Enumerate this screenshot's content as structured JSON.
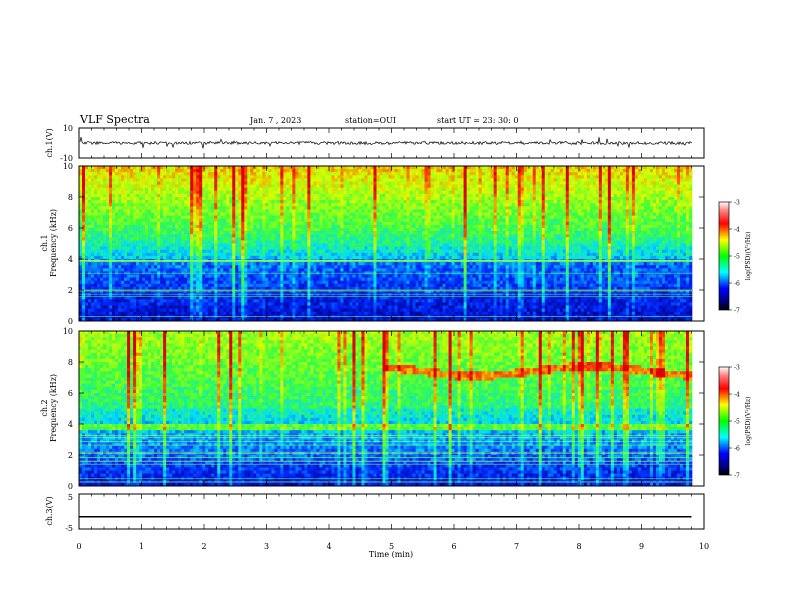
{
  "header": {
    "title": "VLF Spectra",
    "date": "Jan. 7 , 2023",
    "station": "station=OUI",
    "start": "start UT = 23: 30: 0"
  },
  "colors": {
    "black": "#000000",
    "background": "#ffffff"
  },
  "chart_data": [
    {
      "type": "line",
      "ylabel": "ch.1(V)",
      "ylim": [
        -10,
        10
      ],
      "yticks": [
        "10",
        "-10"
      ],
      "xlim": [
        0,
        10
      ],
      "description_series": "waveform"
    },
    {
      "type": "heatmap",
      "ylabel_top": "ch.1",
      "ylabel": "Frequency (kHz)",
      "ylim": [
        0,
        10
      ],
      "yticks": [
        "0",
        "2",
        "4",
        "6",
        "8",
        "10"
      ],
      "xlim": [
        0,
        10
      ],
      "colorbar": {
        "label": "log(PSD)(V²/Hz)",
        "min": -7,
        "max": -3,
        "ticks": [
          "-3",
          "-4",
          "-5",
          "-6",
          "-7"
        ]
      }
    },
    {
      "type": "heatmap",
      "ylabel_top": "ch.2",
      "ylabel": "Frequency (kHz)",
      "ylim": [
        0,
        10
      ],
      "yticks": [
        "0",
        "2",
        "4",
        "6",
        "8",
        "10"
      ],
      "xlim": [
        0,
        10
      ],
      "colorbar": {
        "label": "log(PSD)(V²/Hz)",
        "min": -7,
        "max": -3,
        "ticks": [
          "-3",
          "-4",
          "-5",
          "-6",
          "-7"
        ]
      }
    },
    {
      "type": "line",
      "ylabel": "ch.3(V)",
      "ylim": [
        -5,
        5
      ],
      "yticks": [
        "5",
        "-5"
      ],
      "x": [
        0,
        9.8
      ],
      "y": [
        -1.5,
        -1.5
      ],
      "xlabel": "Time (min)",
      "xticks": [
        "0",
        "1",
        "2",
        "3",
        "4",
        "5",
        "6",
        "7",
        "8",
        "9",
        "10"
      ],
      "xlim": [
        0,
        10
      ]
    }
  ]
}
